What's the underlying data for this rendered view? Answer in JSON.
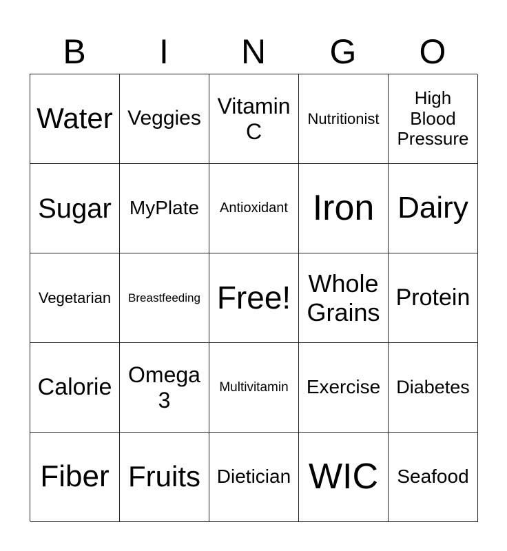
{
  "header": [
    "B",
    "I",
    "N",
    "G",
    "O"
  ],
  "cells": [
    "Water",
    "Veggies",
    "Vitamin C",
    "Nutritionist",
    "High Blood Pressure",
    "Sugar",
    "MyPlate",
    "Antioxidant",
    "Iron",
    "Dairy",
    "Vegetarian",
    "Breastfeeding",
    "Free!",
    "Whole Grains",
    "Protein",
    "Calorie",
    "Omega 3",
    "Multivitamin",
    "Exercise",
    "Diabetes",
    "Fiber",
    "Fruits",
    "Dietician",
    "WIC",
    "Seafood"
  ]
}
